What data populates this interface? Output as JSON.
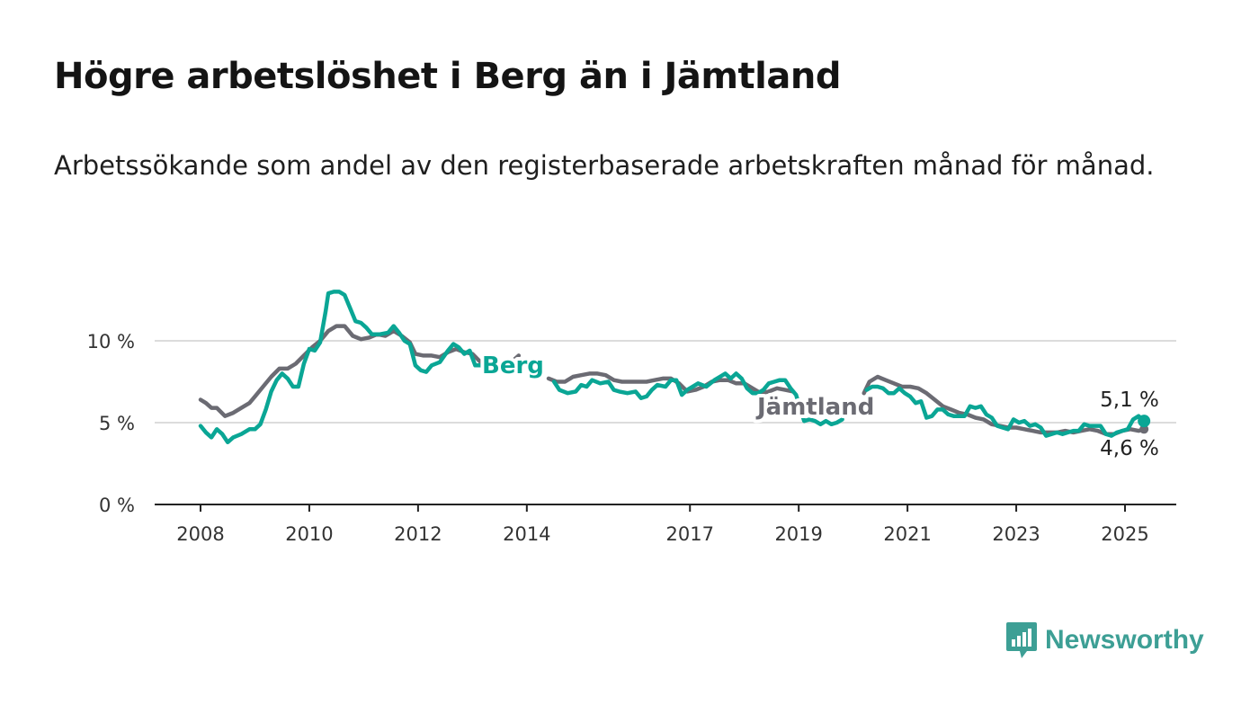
{
  "title": "Högre arbetslöshet i Berg än i Jämtland",
  "subtitle": "Arbetssökande som andel av den registerbaserade arbetskraften månad för månad.",
  "logo": {
    "text": "Newsworthy"
  },
  "colors": {
    "berg": "#0aa695",
    "jamtland": "#6b6b73",
    "grid": "#dcdcdc",
    "axis": "#222222"
  },
  "chart_data": {
    "type": "line",
    "title": "Högre arbetslöshet i Berg än i Jämtland",
    "subtitle": "Arbetssökande som andel av den registerbaserade arbetskraften månad för månad.",
    "xlabel": "",
    "ylabel": "",
    "x_ticks": [
      "2008",
      "2010",
      "2012",
      "2014",
      "2017",
      "2019",
      "2021",
      "2023",
      "2025"
    ],
    "y_ticks": [
      "0 %",
      "5 %",
      "10 %"
    ],
    "y_tick_values": [
      0,
      5,
      10
    ],
    "xlim": [
      2007.2,
      2025.9
    ],
    "ylim": [
      0,
      13.5
    ],
    "grid": true,
    "series": [
      {
        "name": "Berg",
        "end_label": "5,1 %",
        "points": [
          [
            2008.0,
            4.8
          ],
          [
            2008.1,
            4.4
          ],
          [
            2008.2,
            4.1
          ],
          [
            2008.3,
            4.6
          ],
          [
            2008.4,
            4.3
          ],
          [
            2008.5,
            3.8
          ],
          [
            2008.6,
            4.1
          ],
          [
            2008.75,
            4.3
          ],
          [
            2008.9,
            4.6
          ],
          [
            2009.0,
            4.6
          ],
          [
            2009.1,
            4.9
          ],
          [
            2009.2,
            5.8
          ],
          [
            2009.3,
            6.9
          ],
          [
            2009.4,
            7.6
          ],
          [
            2009.5,
            8.0
          ],
          [
            2009.6,
            7.7
          ],
          [
            2009.7,
            7.2
          ],
          [
            2009.8,
            7.2
          ],
          [
            2009.9,
            8.6
          ],
          [
            2010.0,
            9.5
          ],
          [
            2010.1,
            9.4
          ],
          [
            2010.2,
            9.9
          ],
          [
            2010.3,
            11.8
          ],
          [
            2010.35,
            12.9
          ],
          [
            2010.45,
            13.0
          ],
          [
            2010.55,
            13.0
          ],
          [
            2010.65,
            12.8
          ],
          [
            2010.75,
            12.0
          ],
          [
            2010.85,
            11.2
          ],
          [
            2010.95,
            11.1
          ],
          [
            2011.05,
            10.8
          ],
          [
            2011.15,
            10.4
          ],
          [
            2011.3,
            10.4
          ],
          [
            2011.45,
            10.5
          ],
          [
            2011.55,
            10.9
          ],
          [
            2011.65,
            10.5
          ],
          [
            2011.75,
            10.0
          ],
          [
            2011.85,
            9.8
          ],
          [
            2011.95,
            8.5
          ],
          [
            2012.05,
            8.2
          ],
          [
            2012.15,
            8.1
          ],
          [
            2012.25,
            8.5
          ],
          [
            2012.4,
            8.7
          ],
          [
            2012.55,
            9.4
          ],
          [
            2012.65,
            9.8
          ],
          [
            2012.75,
            9.6
          ],
          [
            2012.85,
            9.2
          ],
          [
            2012.95,
            9.4
          ],
          [
            2013.05,
            8.5
          ],
          [
            2013.15,
            8.5
          ],
          [
            2013.25,
            8.4
          ],
          [
            2013.4,
            8.0
          ],
          [
            2013.55,
            8.3
          ],
          [
            2013.65,
            8.1
          ],
          [
            2013.75,
            8.4
          ],
          [
            2014.5,
            7.5
          ],
          [
            2014.6,
            7.0
          ],
          [
            2014.75,
            6.8
          ],
          [
            2014.9,
            6.9
          ],
          [
            2015.0,
            7.3
          ],
          [
            2015.1,
            7.2
          ],
          [
            2015.2,
            7.6
          ],
          [
            2015.35,
            7.4
          ],
          [
            2015.5,
            7.5
          ],
          [
            2015.6,
            7.0
          ],
          [
            2015.7,
            6.9
          ],
          [
            2015.85,
            6.8
          ],
          [
            2016.0,
            6.9
          ],
          [
            2016.1,
            6.5
          ],
          [
            2016.2,
            6.6
          ],
          [
            2016.3,
            7.0
          ],
          [
            2016.4,
            7.3
          ],
          [
            2016.55,
            7.2
          ],
          [
            2016.65,
            7.6
          ],
          [
            2016.75,
            7.6
          ],
          [
            2016.85,
            6.7
          ],
          [
            2016.95,
            7.0
          ],
          [
            2017.05,
            7.2
          ],
          [
            2017.15,
            7.4
          ],
          [
            2017.3,
            7.2
          ],
          [
            2017.45,
            7.6
          ],
          [
            2017.55,
            7.8
          ],
          [
            2017.65,
            8.0
          ],
          [
            2017.75,
            7.7
          ],
          [
            2017.85,
            8.0
          ],
          [
            2017.95,
            7.7
          ],
          [
            2018.05,
            7.1
          ],
          [
            2018.15,
            6.8
          ],
          [
            2018.25,
            6.8
          ],
          [
            2018.35,
            7.0
          ],
          [
            2018.45,
            7.4
          ],
          [
            2018.55,
            7.5
          ],
          [
            2018.65,
            7.6
          ],
          [
            2018.75,
            7.6
          ],
          [
            2018.85,
            7.1
          ],
          [
            2018.95,
            6.7
          ],
          [
            2019.1,
            5.1
          ],
          [
            2019.2,
            5.2
          ],
          [
            2019.3,
            5.1
          ],
          [
            2019.4,
            4.9
          ],
          [
            2019.5,
            5.1
          ],
          [
            2019.6,
            4.9
          ],
          [
            2019.7,
            5.0
          ],
          [
            2019.8,
            5.2
          ],
          [
            2020.25,
            7.0
          ],
          [
            2020.35,
            7.2
          ],
          [
            2020.45,
            7.2
          ],
          [
            2020.55,
            7.1
          ],
          [
            2020.65,
            6.8
          ],
          [
            2020.75,
            6.8
          ],
          [
            2020.85,
            7.1
          ],
          [
            2020.95,
            6.8
          ],
          [
            2021.05,
            6.6
          ],
          [
            2021.15,
            6.2
          ],
          [
            2021.25,
            6.3
          ],
          [
            2021.35,
            5.3
          ],
          [
            2021.45,
            5.4
          ],
          [
            2021.55,
            5.8
          ],
          [
            2021.65,
            5.8
          ],
          [
            2021.75,
            5.5
          ],
          [
            2021.85,
            5.4
          ],
          [
            2021.95,
            5.4
          ],
          [
            2022.05,
            5.4
          ],
          [
            2022.15,
            6.0
          ],
          [
            2022.25,
            5.9
          ],
          [
            2022.35,
            6.0
          ],
          [
            2022.45,
            5.5
          ],
          [
            2022.55,
            5.3
          ],
          [
            2022.65,
            4.8
          ],
          [
            2022.75,
            4.7
          ],
          [
            2022.85,
            4.6
          ],
          [
            2022.95,
            5.2
          ],
          [
            2023.05,
            5.0
          ],
          [
            2023.15,
            5.1
          ],
          [
            2023.25,
            4.8
          ],
          [
            2023.35,
            4.9
          ],
          [
            2023.45,
            4.7
          ],
          [
            2023.55,
            4.2
          ],
          [
            2023.65,
            4.3
          ],
          [
            2023.75,
            4.4
          ],
          [
            2023.85,
            4.3
          ],
          [
            2023.95,
            4.4
          ],
          [
            2024.05,
            4.5
          ],
          [
            2024.15,
            4.5
          ],
          [
            2024.25,
            4.9
          ],
          [
            2024.35,
            4.8
          ],
          [
            2024.45,
            4.8
          ],
          [
            2024.55,
            4.8
          ],
          [
            2024.65,
            4.3
          ],
          [
            2024.75,
            4.2
          ],
          [
            2024.85,
            4.4
          ],
          [
            2024.95,
            4.5
          ],
          [
            2025.05,
            4.6
          ],
          [
            2025.15,
            5.2
          ],
          [
            2025.25,
            5.4
          ],
          [
            2025.35,
            5.1
          ]
        ]
      },
      {
        "name": "Jämtland",
        "end_label": "4,6 %",
        "points": [
          [
            2008.0,
            6.4
          ],
          [
            2008.1,
            6.2
          ],
          [
            2008.2,
            5.9
          ],
          [
            2008.3,
            5.9
          ],
          [
            2008.45,
            5.4
          ],
          [
            2008.6,
            5.6
          ],
          [
            2008.75,
            5.9
          ],
          [
            2008.9,
            6.2
          ],
          [
            2009.0,
            6.6
          ],
          [
            2009.15,
            7.2
          ],
          [
            2009.3,
            7.8
          ],
          [
            2009.45,
            8.3
          ],
          [
            2009.6,
            8.3
          ],
          [
            2009.75,
            8.6
          ],
          [
            2009.9,
            9.1
          ],
          [
            2010.05,
            9.6
          ],
          [
            2010.2,
            10.0
          ],
          [
            2010.35,
            10.6
          ],
          [
            2010.5,
            10.9
          ],
          [
            2010.65,
            10.9
          ],
          [
            2010.8,
            10.3
          ],
          [
            2010.95,
            10.1
          ],
          [
            2011.1,
            10.2
          ],
          [
            2011.25,
            10.4
          ],
          [
            2011.4,
            10.3
          ],
          [
            2011.55,
            10.6
          ],
          [
            2011.7,
            10.3
          ],
          [
            2011.85,
            9.9
          ],
          [
            2011.95,
            9.2
          ],
          [
            2012.1,
            9.1
          ],
          [
            2012.25,
            9.1
          ],
          [
            2012.4,
            9.0
          ],
          [
            2012.55,
            9.3
          ],
          [
            2012.7,
            9.5
          ],
          [
            2012.85,
            9.3
          ],
          [
            2013.0,
            9.2
          ],
          [
            2013.15,
            8.7
          ],
          [
            2013.3,
            8.6
          ],
          [
            2013.45,
            8.5
          ],
          [
            2013.6,
            8.7
          ],
          [
            2013.75,
            8.8
          ],
          [
            2013.85,
            9.1
          ],
          [
            2014.4,
            7.7
          ],
          [
            2014.55,
            7.5
          ],
          [
            2014.7,
            7.5
          ],
          [
            2014.85,
            7.8
          ],
          [
            2015.0,
            7.9
          ],
          [
            2015.15,
            8.0
          ],
          [
            2015.3,
            8.0
          ],
          [
            2015.45,
            7.9
          ],
          [
            2015.6,
            7.6
          ],
          [
            2015.75,
            7.5
          ],
          [
            2015.9,
            7.5
          ],
          [
            2016.05,
            7.5
          ],
          [
            2016.2,
            7.5
          ],
          [
            2016.35,
            7.6
          ],
          [
            2016.5,
            7.7
          ],
          [
            2016.65,
            7.7
          ],
          [
            2016.8,
            7.4
          ],
          [
            2016.95,
            6.9
          ],
          [
            2017.1,
            7.0
          ],
          [
            2017.25,
            7.2
          ],
          [
            2017.4,
            7.5
          ],
          [
            2017.55,
            7.6
          ],
          [
            2017.7,
            7.6
          ],
          [
            2017.85,
            7.4
          ],
          [
            2018.0,
            7.4
          ],
          [
            2018.15,
            7.1
          ],
          [
            2018.3,
            6.8
          ],
          [
            2018.45,
            6.9
          ],
          [
            2018.6,
            7.1
          ],
          [
            2018.75,
            7.0
          ],
          [
            2018.9,
            6.9
          ],
          [
            2020.2,
            6.8
          ],
          [
            2020.3,
            7.5
          ],
          [
            2020.45,
            7.8
          ],
          [
            2020.6,
            7.6
          ],
          [
            2020.75,
            7.4
          ],
          [
            2020.9,
            7.2
          ],
          [
            2021.05,
            7.2
          ],
          [
            2021.2,
            7.1
          ],
          [
            2021.35,
            6.8
          ],
          [
            2021.5,
            6.4
          ],
          [
            2021.65,
            6.0
          ],
          [
            2021.8,
            5.8
          ],
          [
            2021.95,
            5.6
          ],
          [
            2022.1,
            5.5
          ],
          [
            2022.25,
            5.3
          ],
          [
            2022.4,
            5.2
          ],
          [
            2022.55,
            4.9
          ],
          [
            2022.7,
            4.8
          ],
          [
            2022.85,
            4.7
          ],
          [
            2023.0,
            4.7
          ],
          [
            2023.15,
            4.6
          ],
          [
            2023.3,
            4.5
          ],
          [
            2023.45,
            4.4
          ],
          [
            2023.6,
            4.4
          ],
          [
            2023.75,
            4.4
          ],
          [
            2023.9,
            4.5
          ],
          [
            2024.05,
            4.4
          ],
          [
            2024.2,
            4.5
          ],
          [
            2024.35,
            4.6
          ],
          [
            2024.5,
            4.5
          ],
          [
            2024.65,
            4.3
          ],
          [
            2024.8,
            4.3
          ],
          [
            2024.95,
            4.5
          ],
          [
            2025.1,
            4.6
          ],
          [
            2025.25,
            4.5
          ],
          [
            2025.35,
            4.6
          ]
        ]
      }
    ]
  }
}
